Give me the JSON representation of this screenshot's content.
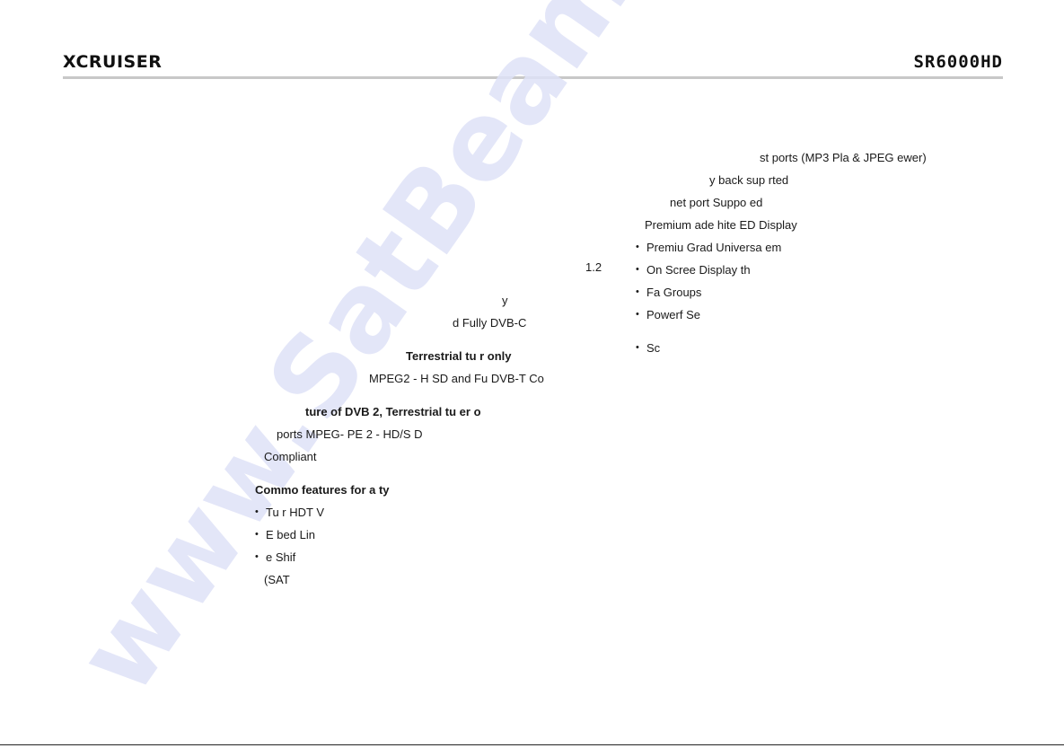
{
  "header": {
    "logo_text": "XCRUISER",
    "model_text": "SR6000HD"
  },
  "watermark": {
    "text": "www.SatBeams.com"
  },
  "left_column": {
    "line_1": "1.2",
    "line_2": "y",
    "line_3": "d Fully DVB-C",
    "heading_2": "Terrestrial tu  r only",
    "line_4": "MPEG2 - H  SD and Fu   DVB-T Co",
    "heading_3": "ture of DVB 2, Terrestrial tu  er o",
    "line_5": "ports MPEG-    PE 2 - HD/S   D",
    "line_6": "Compliant",
    "common_heading": "Commo  features for a  ty",
    "bullets": [
      "    Tu  r HDT   V",
      "E  bed    Lin",
      "  e Shif"
    ],
    "line_7": "(SAT"
  },
  "right_column": {
    "line_1": "st ports (MP3 Pla   & JPEG   ewer)",
    "line_2": "y back sup  rted",
    "line_3": "net port Suppo  ed",
    "line_4": "Premium   ade  hite  ED Display",
    "bullets": [
      "Premiu   Grad   Universa   em",
      "On Scree  Display  th",
      "Fa      Groups",
      "Powerf   Se"
    ],
    "line_5": "Sc"
  }
}
